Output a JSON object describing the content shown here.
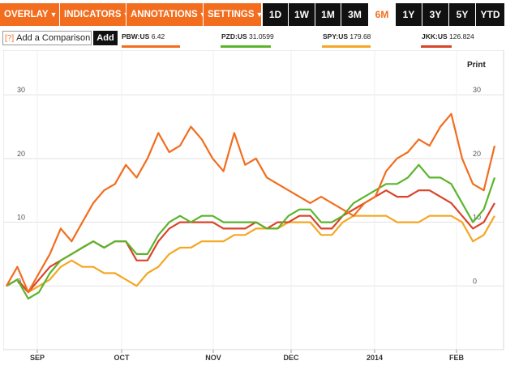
{
  "toolbar": {
    "menus": [
      {
        "label": "OVERLAY"
      },
      {
        "label": "INDICATORS"
      },
      {
        "label": "ANNOTATIONS"
      },
      {
        "label": "SETTINGS"
      }
    ],
    "ranges": [
      {
        "label": "1D",
        "active": false
      },
      {
        "label": "1W",
        "active": false
      },
      {
        "label": "1M",
        "active": false
      },
      {
        "label": "3M",
        "active": false
      },
      {
        "label": "6M",
        "active": true
      },
      {
        "label": "1Y",
        "active": false
      },
      {
        "label": "3Y",
        "active": false
      },
      {
        "label": "5Y",
        "active": false
      },
      {
        "label": "YTD",
        "active": false
      }
    ]
  },
  "comparison": {
    "help_label": "[?]",
    "input_text": "Add a Comparison",
    "add_label": "Add"
  },
  "print_label": "Print",
  "colors": {
    "accent": "#f26d1e",
    "PBW": "#f26d1e",
    "PZD": "#5ab52c",
    "SPY": "#f5a623",
    "JKK": "#d9442a"
  },
  "chart_data": {
    "type": "line",
    "title": "",
    "xlabel": "",
    "ylabel": "",
    "x_tick_labels": [
      "SEP",
      "OCT",
      "NOV",
      "DEC",
      "2014",
      "FEB"
    ],
    "y_ticks": [
      0,
      10,
      20,
      30
    ],
    "ylim": [
      -10,
      37
    ],
    "grid": true,
    "legend": "top",
    "x": [
      0,
      4,
      8,
      12,
      16,
      20,
      24,
      28,
      32,
      36,
      40,
      44,
      48,
      52,
      56,
      60,
      64,
      68,
      72,
      76,
      80,
      84,
      88,
      92,
      96,
      100,
      104,
      108,
      112,
      116,
      120,
      124,
      128,
      132,
      136,
      140,
      144,
      148,
      152,
      156,
      160,
      164,
      168,
      172,
      176,
      180
    ],
    "series": [
      {
        "symbol": "PBW:US",
        "last": "6.42",
        "color": "#f26d1e",
        "values": [
          0,
          3,
          -1,
          2,
          5,
          9,
          7,
          10,
          13,
          15,
          16,
          19,
          17,
          20,
          24,
          21,
          22,
          25,
          23,
          20,
          18,
          24,
          19,
          20,
          17,
          16,
          15,
          14,
          13,
          14,
          13,
          12,
          11,
          13,
          14,
          18,
          20,
          21,
          23,
          22,
          25,
          27,
          20,
          16,
          15,
          22
        ]
      },
      {
        "symbol": "PZD:US",
        "last": "31.0599",
        "color": "#5ab52c",
        "values": [
          0,
          1,
          -2,
          -1,
          2,
          4,
          5,
          6,
          7,
          6,
          7,
          7,
          5,
          5,
          8,
          10,
          11,
          10,
          11,
          11,
          10,
          10,
          10,
          10,
          9,
          9,
          11,
          12,
          12,
          10,
          10,
          11,
          13,
          14,
          15,
          16,
          16,
          17,
          19,
          17,
          17,
          16,
          13,
          10,
          12,
          17
        ]
      },
      {
        "symbol": "SPY:US",
        "last": "179.68",
        "color": "#f5a623",
        "values": [
          0,
          1,
          -1,
          0,
          1,
          3,
          4,
          3,
          3,
          2,
          2,
          1,
          0,
          2,
          3,
          5,
          6,
          6,
          7,
          7,
          7,
          8,
          8,
          9,
          9,
          9,
          10,
          10,
          10,
          8,
          8,
          10,
          11,
          11,
          11,
          11,
          10,
          10,
          10,
          11,
          11,
          11,
          10,
          7,
          8,
          11
        ]
      },
      {
        "symbol": "JKK:US",
        "last": "126.824",
        "color": "#d9442a",
        "values": [
          0,
          1,
          -1,
          1,
          3,
          4,
          5,
          6,
          7,
          6,
          7,
          7,
          4,
          4,
          7,
          9,
          10,
          10,
          10,
          10,
          9,
          9,
          9,
          10,
          9,
          10,
          10,
          11,
          11,
          9,
          9,
          11,
          12,
          13,
          14,
          15,
          14,
          14,
          15,
          15,
          14,
          13,
          11,
          9,
          10,
          13
        ]
      }
    ]
  }
}
